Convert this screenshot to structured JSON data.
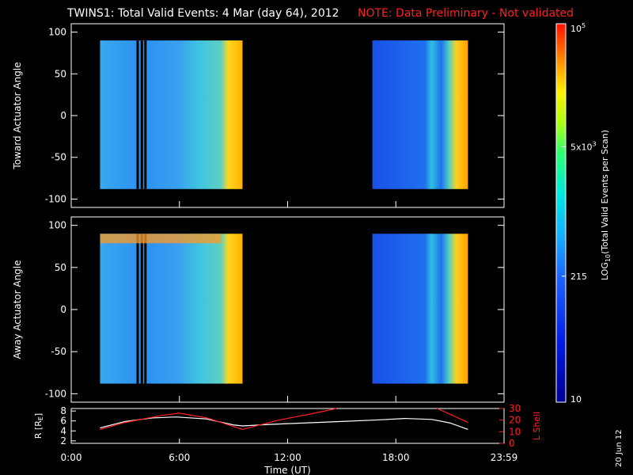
{
  "header": {
    "title": "TWINS1: Total Valid Events:  4 Mar (day  64), 2012",
    "note": "NOTE: Data Preliminary - Not validated"
  },
  "footer": {
    "date_stamp": "20 Jun 12"
  },
  "colors": {
    "background": "#000000",
    "foreground": "#ffffff",
    "note": "#ff2020",
    "lshell": "#ff2020"
  },
  "chart_data": [
    {
      "type": "heatmap",
      "ylabel": "Toward Actuator Angle",
      "ylim": [
        -110,
        110
      ],
      "yticks": [
        -100,
        -50,
        0,
        50,
        100
      ],
      "xlim": [
        0,
        24
      ],
      "xticks": [
        0,
        6,
        12,
        18,
        24
      ],
      "data_intervals": [
        [
          1.6,
          9.5
        ],
        [
          16.7,
          22.0
        ]
      ],
      "data_angle_range": [
        -88,
        90
      ]
    },
    {
      "type": "heatmap",
      "ylabel": "Away Actuator Angle",
      "ylim": [
        -110,
        110
      ],
      "yticks": [
        -100,
        -50,
        0,
        50,
        100
      ],
      "xlim": [
        0,
        24
      ],
      "xticks": [
        0,
        6,
        12,
        18,
        24
      ],
      "data_intervals": [
        [
          1.6,
          9.5
        ],
        [
          16.7,
          22.0
        ]
      ],
      "data_angle_range": [
        -88,
        90
      ]
    },
    {
      "type": "line",
      "xlabel": "Time (UT)",
      "xtick_labels": [
        "0:00",
        "6:00",
        "12:00",
        "18:00",
        "23:59"
      ],
      "xticks": [
        0,
        6,
        12,
        18,
        24
      ],
      "left_axis": {
        "label": "R [R",
        "label_sub": "E",
        "label_end": "]",
        "ylim": [
          1.5,
          8.5
        ],
        "yticks": [
          2,
          4,
          6,
          8
        ]
      },
      "right_axis": {
        "label": "L Shell",
        "ylim": [
          0,
          30
        ],
        "yticks": [
          0,
          10,
          20,
          30
        ]
      },
      "series": [
        {
          "axis": "left",
          "color": "#ffffff",
          "x": [
            1.6,
            3.0,
            4.5,
            5.8,
            7.5,
            9.0,
            9.5,
            11.0,
            13.0,
            15.0,
            17.0,
            18.5,
            20.0,
            21.0,
            22.0
          ],
          "y": [
            4.6,
            5.9,
            6.6,
            6.8,
            6.4,
            5.2,
            5.0,
            5.3,
            5.6,
            5.9,
            6.2,
            6.5,
            6.3,
            5.6,
            4.3
          ]
        },
        {
          "axis": "right",
          "color": "#ff2020",
          "segments": [
            {
              "x": [
                1.6,
                3.0,
                5.0,
                6.0,
                7.5,
                9.5
              ],
              "y": [
                12,
                18,
                24,
                26,
                22,
                12
              ]
            },
            {
              "x": [
                9.5,
                11.5,
                13.5,
                14.7
              ],
              "y": [
                12,
                20,
                26,
                31
              ]
            },
            {
              "x": [
                20.3,
                22.0
              ],
              "y": [
                31,
                18
              ]
            }
          ]
        }
      ]
    }
  ],
  "colorbar": {
    "label": "LOG",
    "label_sub": "10",
    "label_rest": "(Total Valid  Events per Scan)",
    "ticks": [
      {
        "mant": "10",
        "exp": "5",
        "value": 100000
      },
      {
        "mant": "5x10",
        "exp": "3",
        "value": 5000
      },
      {
        "mant": "215",
        "exp": "",
        "value": 215
      },
      {
        "mant": "10",
        "exp": "",
        "value": 10
      }
    ],
    "vmin": 10,
    "vmax": 100000
  }
}
